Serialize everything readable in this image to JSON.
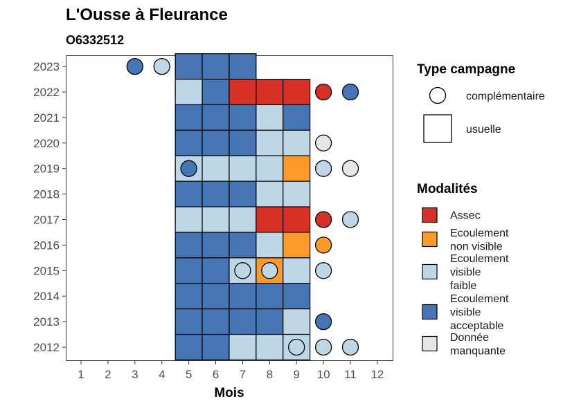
{
  "chart_data": {
    "type": "heatmap",
    "title": "L'Ousse à Fleurance",
    "subtitle": "O6332512",
    "xlabel": "Mois",
    "x_ticks": [
      "1",
      "2",
      "3",
      "4",
      "5",
      "6",
      "7",
      "8",
      "9",
      "10",
      "11",
      "12"
    ],
    "y_ticks": [
      "2012",
      "2013",
      "2014",
      "2015",
      "2016",
      "2017",
      "2018",
      "2019",
      "2020",
      "2021",
      "2022",
      "2023"
    ],
    "legend_type_title": "Type campagne",
    "legend_type_items": [
      {
        "key": "complementaire",
        "label": "complémentaire",
        "shape": "circle"
      },
      {
        "key": "usuelle",
        "label": "usuelle",
        "shape": "square"
      }
    ],
    "legend_mod_title": "Modalités",
    "legend_mod_items": [
      {
        "key": "assec",
        "lines": [
          "Assec"
        ],
        "color": "#d73027"
      },
      {
        "key": "ecoul_nv",
        "lines": [
          "Ecoulement",
          "non visible"
        ],
        "color": "#fd9a2a"
      },
      {
        "key": "ecoul_vf",
        "lines": [
          "Ecoulement",
          "visible",
          "faible"
        ],
        "color": "#bdd7e7"
      },
      {
        "key": "ecoul_va",
        "lines": [
          "Ecoulement",
          "visible",
          "acceptable"
        ],
        "color": "#4575b4"
      },
      {
        "key": "nd",
        "lines": [
          "Donnée",
          "manquante"
        ],
        "color": "#e6e6e6"
      }
    ],
    "tiles": [
      {
        "year": 2023,
        "month": 5,
        "mod": "ecoul_va"
      },
      {
        "year": 2023,
        "month": 6,
        "mod": "ecoul_va"
      },
      {
        "year": 2023,
        "month": 7,
        "mod": "ecoul_va"
      },
      {
        "year": 2022,
        "month": 5,
        "mod": "ecoul_vf"
      },
      {
        "year": 2022,
        "month": 6,
        "mod": "ecoul_va"
      },
      {
        "year": 2022,
        "month": 7,
        "mod": "assec"
      },
      {
        "year": 2022,
        "month": 8,
        "mod": "assec"
      },
      {
        "year": 2022,
        "month": 9,
        "mod": "assec"
      },
      {
        "year": 2021,
        "month": 5,
        "mod": "ecoul_va"
      },
      {
        "year": 2021,
        "month": 6,
        "mod": "ecoul_va"
      },
      {
        "year": 2021,
        "month": 7,
        "mod": "ecoul_va"
      },
      {
        "year": 2021,
        "month": 8,
        "mod": "ecoul_vf"
      },
      {
        "year": 2021,
        "month": 9,
        "mod": "ecoul_va"
      },
      {
        "year": 2020,
        "month": 5,
        "mod": "ecoul_va"
      },
      {
        "year": 2020,
        "month": 6,
        "mod": "ecoul_va"
      },
      {
        "year": 2020,
        "month": 7,
        "mod": "ecoul_va"
      },
      {
        "year": 2020,
        "month": 8,
        "mod": "ecoul_vf"
      },
      {
        "year": 2020,
        "month": 9,
        "mod": "ecoul_vf"
      },
      {
        "year": 2019,
        "month": 5,
        "mod": "ecoul_vf"
      },
      {
        "year": 2019,
        "month": 6,
        "mod": "ecoul_vf"
      },
      {
        "year": 2019,
        "month": 7,
        "mod": "ecoul_vf"
      },
      {
        "year": 2019,
        "month": 8,
        "mod": "ecoul_vf"
      },
      {
        "year": 2019,
        "month": 9,
        "mod": "ecoul_nv"
      },
      {
        "year": 2018,
        "month": 5,
        "mod": "ecoul_va"
      },
      {
        "year": 2018,
        "month": 6,
        "mod": "ecoul_va"
      },
      {
        "year": 2018,
        "month": 7,
        "mod": "ecoul_va"
      },
      {
        "year": 2018,
        "month": 8,
        "mod": "ecoul_vf"
      },
      {
        "year": 2018,
        "month": 9,
        "mod": "ecoul_vf"
      },
      {
        "year": 2017,
        "month": 5,
        "mod": "ecoul_vf"
      },
      {
        "year": 2017,
        "month": 6,
        "mod": "ecoul_vf"
      },
      {
        "year": 2017,
        "month": 7,
        "mod": "ecoul_vf"
      },
      {
        "year": 2017,
        "month": 8,
        "mod": "assec"
      },
      {
        "year": 2017,
        "month": 9,
        "mod": "assec"
      },
      {
        "year": 2016,
        "month": 5,
        "mod": "ecoul_va"
      },
      {
        "year": 2016,
        "month": 6,
        "mod": "ecoul_va"
      },
      {
        "year": 2016,
        "month": 7,
        "mod": "ecoul_va"
      },
      {
        "year": 2016,
        "month": 8,
        "mod": "ecoul_vf"
      },
      {
        "year": 2016,
        "month": 9,
        "mod": "ecoul_nv"
      },
      {
        "year": 2015,
        "month": 5,
        "mod": "ecoul_va"
      },
      {
        "year": 2015,
        "month": 6,
        "mod": "ecoul_va"
      },
      {
        "year": 2015,
        "month": 7,
        "mod": "ecoul_vf"
      },
      {
        "year": 2015,
        "month": 8,
        "mod": "ecoul_nv"
      },
      {
        "year": 2015,
        "month": 9,
        "mod": "ecoul_vf"
      },
      {
        "year": 2014,
        "month": 5,
        "mod": "ecoul_va"
      },
      {
        "year": 2014,
        "month": 6,
        "mod": "ecoul_va"
      },
      {
        "year": 2014,
        "month": 7,
        "mod": "ecoul_va"
      },
      {
        "year": 2014,
        "month": 8,
        "mod": "ecoul_va"
      },
      {
        "year": 2014,
        "month": 9,
        "mod": "ecoul_va"
      },
      {
        "year": 2013,
        "month": 5,
        "mod": "ecoul_va"
      },
      {
        "year": 2013,
        "month": 6,
        "mod": "ecoul_va"
      },
      {
        "year": 2013,
        "month": 7,
        "mod": "ecoul_va"
      },
      {
        "year": 2013,
        "month": 8,
        "mod": "ecoul_va"
      },
      {
        "year": 2013,
        "month": 9,
        "mod": "ecoul_vf"
      },
      {
        "year": 2012,
        "month": 5,
        "mod": "ecoul_va"
      },
      {
        "year": 2012,
        "month": 6,
        "mod": "ecoul_va"
      },
      {
        "year": 2012,
        "month": 7,
        "mod": "ecoul_vf"
      },
      {
        "year": 2012,
        "month": 8,
        "mod": "ecoul_vf"
      },
      {
        "year": 2012,
        "month": 9,
        "mod": "ecoul_vf"
      }
    ],
    "points": [
      {
        "year": 2023,
        "month": 3,
        "mod": "ecoul_va"
      },
      {
        "year": 2023,
        "month": 4,
        "mod": "ecoul_vf"
      },
      {
        "year": 2022,
        "month": 10,
        "mod": "assec"
      },
      {
        "year": 2022,
        "month": 11,
        "mod": "ecoul_va"
      },
      {
        "year": 2020,
        "month": 10,
        "mod": "nd"
      },
      {
        "year": 2019,
        "month": 5,
        "mod": "ecoul_va"
      },
      {
        "year": 2019,
        "month": 10,
        "mod": "ecoul_vf"
      },
      {
        "year": 2019,
        "month": 11,
        "mod": "nd"
      },
      {
        "year": 2017,
        "month": 10,
        "mod": "assec"
      },
      {
        "year": 2017,
        "month": 11,
        "mod": "ecoul_vf"
      },
      {
        "year": 2016,
        "month": 10,
        "mod": "ecoul_nv"
      },
      {
        "year": 2015,
        "month": 7,
        "mod": "ecoul_vf"
      },
      {
        "year": 2015,
        "month": 8,
        "mod": "ecoul_vf"
      },
      {
        "year": 2015,
        "month": 10,
        "mod": "ecoul_vf"
      },
      {
        "year": 2013,
        "month": 10,
        "mod": "ecoul_va"
      },
      {
        "year": 2012,
        "month": 9,
        "mod": "ecoul_vf"
      },
      {
        "year": 2012,
        "month": 10,
        "mod": "ecoul_vf"
      },
      {
        "year": 2012,
        "month": 11,
        "mod": "ecoul_vf"
      }
    ]
  }
}
